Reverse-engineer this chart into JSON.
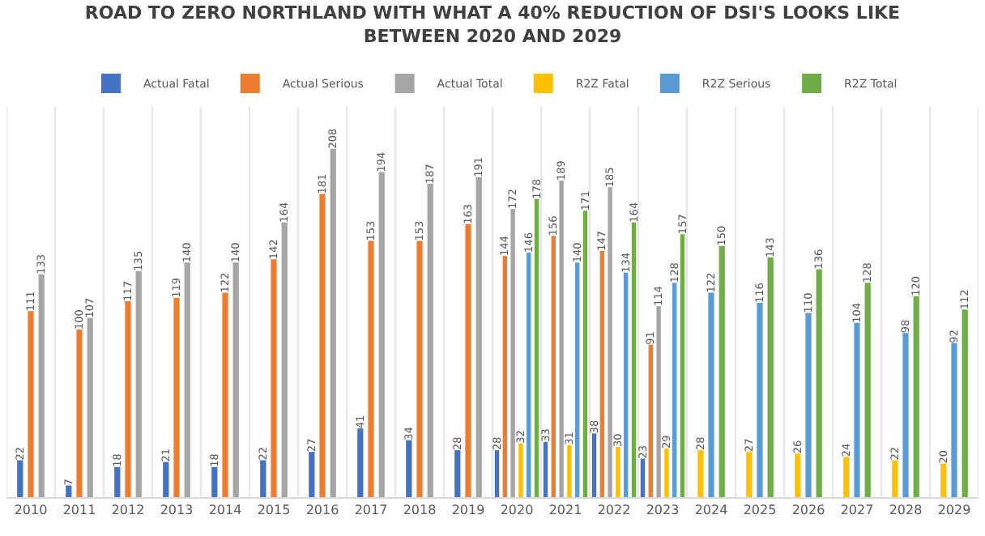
{
  "chart_data": {
    "type": "bar",
    "title": "ROAD TO ZERO NORTHLAND WITH WHAT A 40% REDUCTION OF DSI'S LOOKS LIKE BETWEEN 2020 AND 2029",
    "categories": [
      "2010",
      "2011",
      "2012",
      "2013",
      "2014",
      "2015",
      "2016",
      "2017",
      "2018",
      "2019",
      "2020",
      "2021",
      "2022",
      "2023",
      "2024",
      "2025",
      "2026",
      "2027",
      "2028",
      "2029"
    ],
    "series": [
      {
        "name": "Actual Fatal",
        "color": "#4472c4",
        "values": [
          22,
          7,
          18,
          21,
          18,
          22,
          27,
          41,
          34,
          28,
          28,
          33,
          38,
          23,
          null,
          null,
          null,
          null,
          null,
          null
        ]
      },
      {
        "name": "Actual Serious",
        "color": "#ed7d31",
        "values": [
          111,
          100,
          117,
          119,
          122,
          142,
          181,
          153,
          153,
          163,
          144,
          156,
          147,
          91,
          null,
          null,
          null,
          null,
          null,
          null
        ]
      },
      {
        "name": "Actual Total",
        "color": "#a5a5a5",
        "values": [
          133,
          107,
          135,
          140,
          140,
          164,
          208,
          194,
          187,
          191,
          172,
          189,
          185,
          114,
          null,
          null,
          null,
          null,
          null,
          null
        ]
      },
      {
        "name": "R2Z Fatal",
        "color": "#ffc000",
        "values": [
          null,
          null,
          null,
          null,
          null,
          null,
          null,
          null,
          null,
          null,
          32,
          31,
          30,
          29,
          28,
          27,
          26,
          24,
          22,
          20
        ]
      },
      {
        "name": "R2Z Serious",
        "color": "#5b9bd5",
        "values": [
          null,
          null,
          null,
          null,
          null,
          null,
          null,
          null,
          null,
          null,
          146,
          140,
          134,
          128,
          122,
          116,
          110,
          104,
          98,
          92
        ]
      },
      {
        "name": "R2Z Total",
        "color": "#70ad47",
        "values": [
          null,
          null,
          null,
          null,
          null,
          null,
          null,
          null,
          null,
          null,
          178,
          171,
          164,
          157,
          150,
          143,
          136,
          128,
          120,
          112
        ]
      }
    ],
    "data_labels": true,
    "grid": "x",
    "legend": "top"
  }
}
